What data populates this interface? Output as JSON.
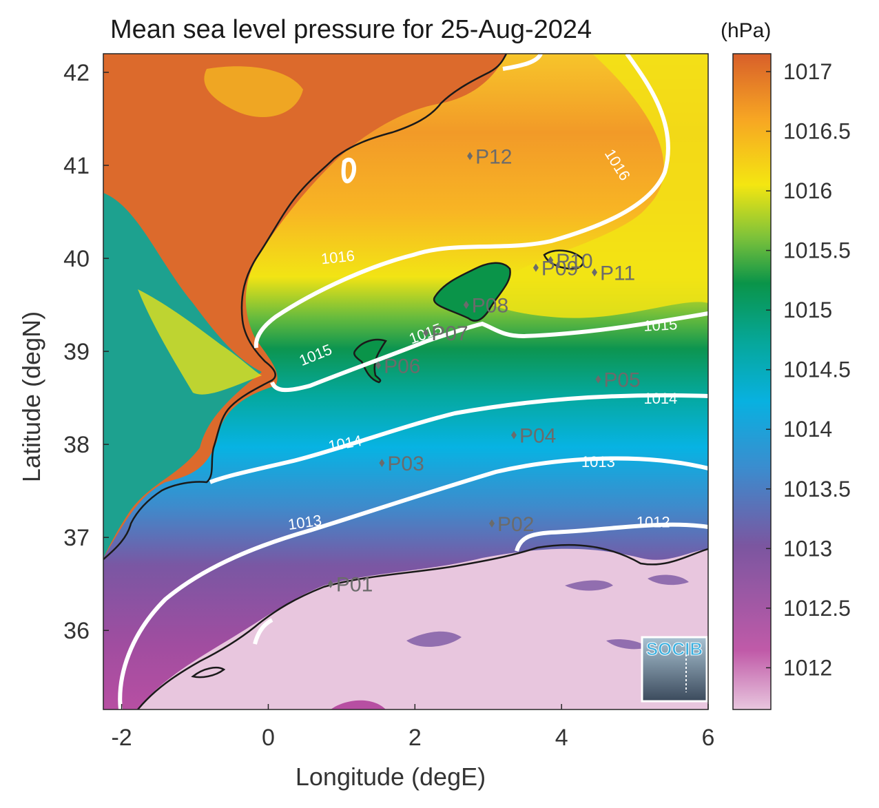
{
  "title": "Mean sea level pressure for 25-Aug-2024",
  "unit": "(hPa)",
  "x_axis": {
    "label": "Longitude (degE)",
    "ticks": [
      {
        "v": -2,
        "t": "-2"
      },
      {
        "v": 0,
        "t": "0"
      },
      {
        "v": 2,
        "t": "2"
      },
      {
        "v": 4,
        "t": "4"
      },
      {
        "v": 6,
        "t": "6"
      }
    ],
    "range": [
      -2.25,
      6.0
    ]
  },
  "y_axis": {
    "label": "Latitude (degN)",
    "ticks": [
      {
        "v": 36,
        "t": "36"
      },
      {
        "v": 37,
        "t": "37"
      },
      {
        "v": 38,
        "t": "38"
      },
      {
        "v": 39,
        "t": "39"
      },
      {
        "v": 40,
        "t": "40"
      },
      {
        "v": 41,
        "t": "41"
      },
      {
        "v": 42,
        "t": "42"
      }
    ],
    "range": [
      35.15,
      42.2
    ]
  },
  "colorbar": {
    "range": [
      1011.65,
      1017.15
    ],
    "ticks": [
      {
        "v": 1012,
        "t": "1012"
      },
      {
        "v": 1012.5,
        "t": "1012.5"
      },
      {
        "v": 1013,
        "t": "1013"
      },
      {
        "v": 1013.5,
        "t": "1013.5"
      },
      {
        "v": 1014,
        "t": "1014"
      },
      {
        "v": 1014.5,
        "t": "1014.5"
      },
      {
        "v": 1015,
        "t": "1015"
      },
      {
        "v": 1015.5,
        "t": "1015.5"
      },
      {
        "v": 1016,
        "t": "1016"
      },
      {
        "v": 1016.5,
        "t": "1016.5"
      },
      {
        "v": 1017,
        "t": "1017"
      }
    ],
    "colors": [
      "#e8c6de",
      "#c05aa8",
      "#7b56a0",
      "#3a8dcf",
      "#08b1e0",
      "#06a79a",
      "#0a9449",
      "#7dc23a",
      "#f4e611",
      "#f7a623",
      "#e06f2d",
      "#d85f2a"
    ]
  },
  "points": [
    {
      "name": "P01",
      "lon": 0.85,
      "lat": 36.5
    },
    {
      "name": "P02",
      "lon": 3.05,
      "lat": 37.15
    },
    {
      "name": "P03",
      "lon": 1.55,
      "lat": 37.8
    },
    {
      "name": "P04",
      "lon": 3.35,
      "lat": 38.1
    },
    {
      "name": "P05",
      "lon": 4.5,
      "lat": 38.7
    },
    {
      "name": "P06",
      "lon": 1.5,
      "lat": 38.85
    },
    {
      "name": "P07",
      "lon": 2.15,
      "lat": 39.2
    },
    {
      "name": "P08",
      "lon": 2.7,
      "lat": 39.5
    },
    {
      "name": "P09",
      "lon": 3.65,
      "lat": 39.9
    },
    {
      "name": "P10",
      "lon": 3.85,
      "lat": 39.98
    },
    {
      "name": "P11",
      "lon": 4.45,
      "lat": 39.85
    },
    {
      "name": "P12",
      "lon": 2.75,
      "lat": 41.1
    }
  ],
  "contour_labels": [
    {
      "text": "1016",
      "lon": 4.75,
      "lat": 41.0,
      "rot": 58
    },
    {
      "text": "1016",
      "lon": 0.95,
      "lat": 40.0,
      "rot": -6
    },
    {
      "text": "1015",
      "lon": 0.65,
      "lat": 38.95,
      "rot": -22
    },
    {
      "text": "1015",
      "lon": 2.15,
      "lat": 39.18,
      "rot": -20
    },
    {
      "text": "1015",
      "lon": 5.35,
      "lat": 39.27,
      "rot": -3
    },
    {
      "text": "1014",
      "lon": 1.05,
      "lat": 38.0,
      "rot": -10
    },
    {
      "text": "1014",
      "lon": 5.35,
      "lat": 38.48,
      "rot": 0
    },
    {
      "text": "1013",
      "lon": 4.5,
      "lat": 37.8,
      "rot": 0
    },
    {
      "text": "1013",
      "lon": 0.5,
      "lat": 37.15,
      "rot": -8
    },
    {
      "text": "1012",
      "lon": 5.25,
      "lat": 37.15,
      "rot": 0
    }
  ],
  "logo": {
    "text": "SOCIB"
  },
  "colors": {
    "contour": "#ffffff",
    "coast": "#1a1a1a",
    "marker": "#6b6b6b",
    "land": "#e8c6de"
  }
}
